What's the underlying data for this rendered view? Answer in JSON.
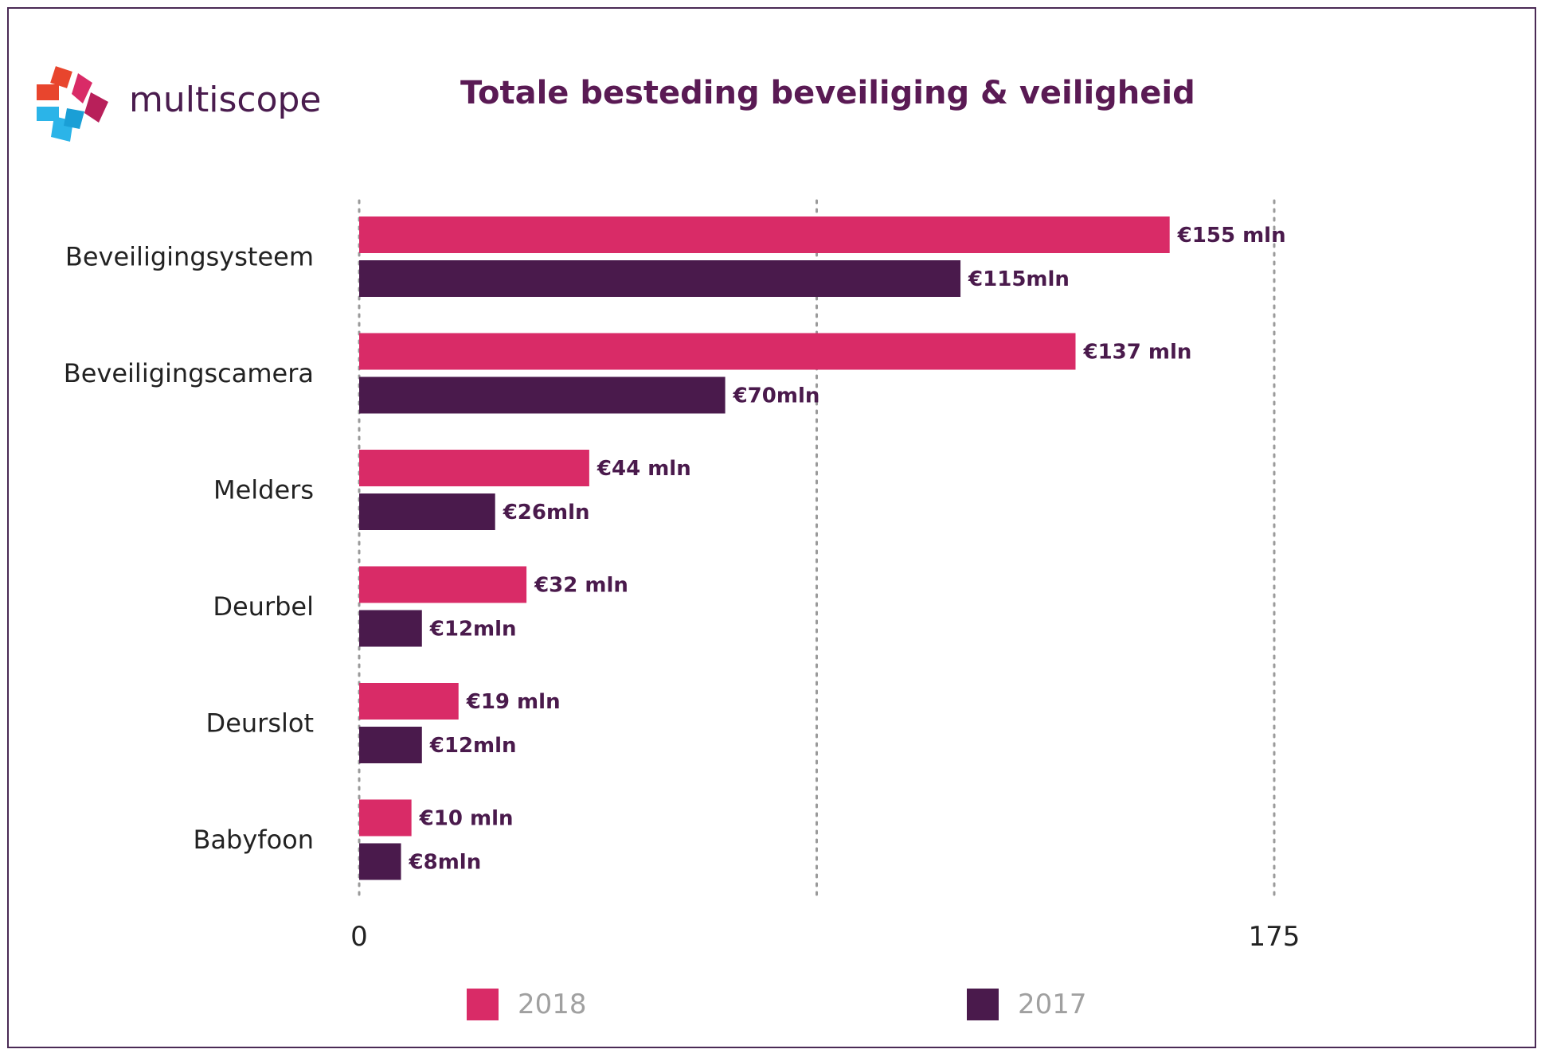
{
  "brand": {
    "name": "multiscope"
  },
  "chart_data": {
    "type": "bar",
    "orientation": "horizontal",
    "title": "Totale besteding beveiliging & veiligheid",
    "categories": [
      "Beveiligingsysteem",
      "Beveiligingscamera",
      "Melders",
      "Deurbel",
      "Deurslot",
      "Babyfoon"
    ],
    "series": [
      {
        "name": "2018",
        "color": "#d92b67",
        "values": [
          155,
          137,
          44,
          32,
          19,
          10
        ],
        "labels": [
          "€155 mln",
          "€137 mln",
          "€44 mln",
          "€32 mln",
          "€19 mln",
          "€10 mln"
        ]
      },
      {
        "name": "2017",
        "color": "#4a1a4c",
        "values": [
          115,
          70,
          26,
          12,
          12,
          8
        ],
        "labels": [
          "€115mln",
          "€70mln",
          "€26mln",
          "€12mln",
          "€12mln",
          "€8mln"
        ]
      }
    ],
    "xlim": [
      0,
      175
    ],
    "ticks": [
      {
        "value": 0,
        "label": "0"
      },
      {
        "value": 87.5,
        "label": ""
      },
      {
        "value": 175,
        "label": "175"
      }
    ],
    "grid": true,
    "legend_position": "bottom"
  }
}
